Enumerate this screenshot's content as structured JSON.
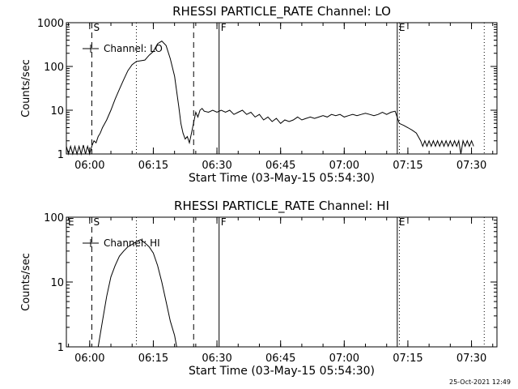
{
  "timestamp": "25-Oct-2021 12:49",
  "chart_data": [
    {
      "type": "line",
      "title": "RHESSI PARTICLE_RATE Channel: LO",
      "xlabel": "Start Time (03-May-15 05:54:30)",
      "ylabel": "Counts/sec",
      "yscale": "log",
      "xlim": [
        "05:54:30",
        "07:36:00"
      ],
      "ylim": [
        1,
        1000
      ],
      "xticks": [
        "06:00",
        "06:15",
        "06:30",
        "06:45",
        "07:00",
        "07:15",
        "07:30"
      ],
      "yticks": [
        "1",
        "10",
        "100",
        "1000"
      ],
      "grid": false,
      "legend": {
        "label": "Channel: LO",
        "position": "top-left"
      },
      "markers": [
        {
          "label": "S",
          "time": "06:00:30",
          "style": "dashed"
        },
        {
          "label": "",
          "time": "06:11:00",
          "style": "dotted"
        },
        {
          "label": "",
          "time": "06:24:30",
          "style": "dashed"
        },
        {
          "label": "F",
          "time": "06:30:30",
          "style": "solid"
        },
        {
          "label": "E",
          "time": "07:12:30",
          "style": "solid"
        },
        {
          "label": "",
          "time": "07:13:00",
          "style": "dotted"
        },
        {
          "label": "",
          "time": "07:33:00",
          "style": "dotted"
        }
      ],
      "series": [
        {
          "name": "Channel: LO",
          "x": [
            "05:54:30",
            "05:55:00",
            "05:55:30",
            "05:56:00",
            "05:56:30",
            "05:57:00",
            "05:57:30",
            "05:58:00",
            "05:58:30",
            "05:59:00",
            "05:59:30",
            "06:00:00",
            "06:00:30",
            "06:01:00",
            "06:01:30",
            "06:02:00",
            "06:02:30",
            "06:03:00",
            "06:04:00",
            "06:05:00",
            "06:06:00",
            "06:07:00",
            "06:08:00",
            "06:09:00",
            "06:10:00",
            "06:11:00",
            "06:12:00",
            "06:13:00",
            "06:14:00",
            "06:15:00",
            "06:16:00",
            "06:17:00",
            "06:18:00",
            "06:19:00",
            "06:20:00",
            "06:21:00",
            "06:21:30",
            "06:22:00",
            "06:22:30",
            "06:23:00",
            "06:23:30",
            "06:24:00",
            "06:25:00",
            "06:25:30",
            "06:26:00",
            "06:26:30",
            "06:27:00",
            "06:28:00",
            "06:29:00",
            "06:30:00",
            "06:31:00",
            "06:32:00",
            "06:33:00",
            "06:34:00",
            "06:35:00",
            "06:36:00",
            "06:37:00",
            "06:38:00",
            "06:39:00",
            "06:40:00",
            "06:41:00",
            "06:42:00",
            "06:43:00",
            "06:44:00",
            "06:45:00",
            "06:46:00",
            "06:47:00",
            "06:48:00",
            "06:49:00",
            "06:50:00",
            "06:51:00",
            "06:52:00",
            "06:53:00",
            "06:54:00",
            "06:55:00",
            "06:56:00",
            "06:57:00",
            "06:58:00",
            "06:59:00",
            "07:00:00",
            "07:01:00",
            "07:02:00",
            "07:03:00",
            "07:04:00",
            "07:05:00",
            "07:06:00",
            "07:07:00",
            "07:08:00",
            "07:09:00",
            "07:10:00",
            "07:11:00",
            "07:12:00",
            "07:13:00",
            "07:14:00",
            "07:15:00",
            "07:16:00",
            "07:17:00",
            "07:18:00",
            "07:18:30",
            "07:19:00",
            "07:19:30",
            "07:20:00",
            "07:20:30",
            "07:21:00",
            "07:21:30",
            "07:22:00",
            "07:22:30",
            "07:23:00",
            "07:23:30",
            "07:24:00",
            "07:24:30",
            "07:25:00",
            "07:25:30",
            "07:26:00",
            "07:26:30",
            "07:27:00",
            "07:27:30",
            "07:28:00",
            "07:28:30",
            "07:29:00",
            "07:29:30",
            "07:30:00",
            "07:30:30"
          ],
          "y": [
            1.5,
            1,
            1.5,
            1,
            1.5,
            1,
            1.5,
            1,
            1.6,
            1,
            1.5,
            1,
            1.5,
            2,
            1.8,
            2.5,
            3,
            4,
            6,
            10,
            18,
            30,
            50,
            80,
            110,
            130,
            135,
            140,
            180,
            220,
            330,
            380,
            300,
            150,
            60,
            12,
            5,
            3,
            2.2,
            2.5,
            1.8,
            3,
            9,
            7,
            10,
            11,
            9.5,
            9,
            10,
            9,
            10,
            9,
            10,
            8,
            9,
            10,
            8,
            9,
            7,
            8,
            6,
            7,
            5.5,
            6.5,
            5,
            6,
            5.5,
            6,
            7,
            6,
            6.5,
            7,
            6.5,
            7,
            7.5,
            7,
            8,
            7.5,
            8,
            7,
            7.5,
            8,
            7.5,
            8,
            8.5,
            8,
            7.5,
            8,
            9,
            8,
            9,
            9.5,
            5,
            4.5,
            4,
            3.5,
            3,
            2,
            1.5,
            2,
            1.5,
            2,
            1.5,
            2,
            1.5,
            2,
            1.5,
            2,
            1.5,
            2,
            1.5,
            2,
            1.5,
            2,
            1.5,
            2,
            1,
            2,
            1.5,
            2,
            1.5,
            2,
            1.5
          ]
        }
      ]
    },
    {
      "type": "line",
      "title": "RHESSI PARTICLE_RATE Channel: HI",
      "xlabel": "Start Time (03-May-15 05:54:30)",
      "ylabel": "Counts/sec",
      "yscale": "log",
      "xlim": [
        "05:54:30",
        "07:36:00"
      ],
      "ylim": [
        1,
        100
      ],
      "xticks": [
        "06:00",
        "06:15",
        "06:30",
        "06:45",
        "07:00",
        "07:15",
        "07:30"
      ],
      "yticks": [
        "1",
        "10",
        "100"
      ],
      "grid": false,
      "legend": {
        "label": "Channel: HI",
        "position": "top-left"
      },
      "markers": [
        {
          "label": "E",
          "time": "05:54:30",
          "style": "solid"
        },
        {
          "label": "S",
          "time": "06:00:30",
          "style": "dashed"
        },
        {
          "label": "",
          "time": "06:11:00",
          "style": "dotted"
        },
        {
          "label": "",
          "time": "06:24:30",
          "style": "dashed"
        },
        {
          "label": "F",
          "time": "06:30:30",
          "style": "solid"
        },
        {
          "label": "E",
          "time": "07:12:30",
          "style": "solid"
        },
        {
          "label": "",
          "time": "07:13:00",
          "style": "dotted"
        },
        {
          "label": "",
          "time": "07:33:00",
          "style": "dotted"
        }
      ],
      "series": [
        {
          "name": "Channel: HI",
          "x": [
            "06:02:00",
            "06:03:00",
            "06:04:00",
            "06:05:00",
            "06:06:00",
            "06:07:00",
            "06:08:00",
            "06:09:00",
            "06:10:00",
            "06:11:00",
            "06:12:00",
            "06:13:00",
            "06:14:00",
            "06:15:00",
            "06:16:00",
            "06:17:00",
            "06:18:00",
            "06:19:00",
            "06:20:00",
            "06:20:30"
          ],
          "y": [
            1,
            2.5,
            6,
            12,
            18,
            25,
            30,
            35,
            38,
            42,
            45,
            40,
            35,
            28,
            18,
            10,
            5,
            2.5,
            1.5,
            1
          ]
        }
      ]
    }
  ]
}
